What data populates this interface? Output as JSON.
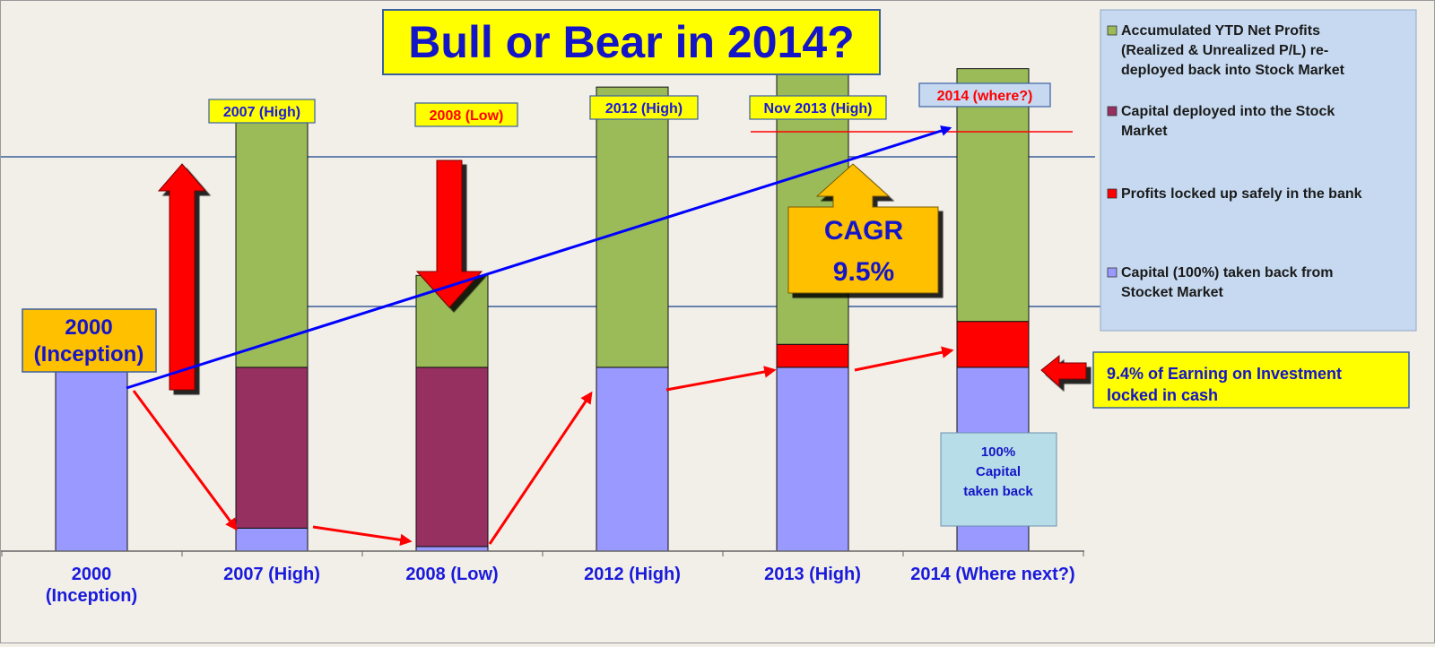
{
  "chart_data": {
    "type": "bar",
    "stacked": true,
    "title": "Bull or Bear in 2014?",
    "xlabel": "",
    "ylabel": "",
    "grid": false,
    "legend_position": "right",
    "categories": [
      "2000 (Inception)",
      "2007 (High)",
      "2008 (Low)",
      "2012 (High)",
      "2013 (High)",
      "2014 (Where next?)"
    ],
    "category_lines": [
      [
        "2000"
      ],
      [
        "(Inception)"
      ]
    ],
    "ylim": [
      0,
      110
    ],
    "series": [
      {
        "key": "capital_taken_back",
        "color": "#9999ff",
        "values": [
          40,
          5,
          1,
          40,
          40,
          40
        ]
      },
      {
        "key": "capital_deployed",
        "color": "#953060",
        "values": [
          0,
          35,
          39,
          0,
          0,
          0
        ]
      },
      {
        "key": "profits_locked",
        "color": "#ff0000",
        "values": [
          0,
          0,
          0,
          0,
          5,
          10
        ]
      },
      {
        "key": "accumulated_profits",
        "color": "#9bbb59",
        "values": [
          0,
          58,
          20,
          61,
          59,
          55
        ]
      }
    ],
    "legend": [
      {
        "series": "accumulated_profits",
        "lines": [
          "Accumulated YTD Net Profits",
          "(Realized & Unrealized P/L) re-",
          "deployed back into Stock Market"
        ]
      },
      {
        "series": "capital_deployed",
        "lines": [
          "Capital deployed into the Stock",
          "Market"
        ]
      },
      {
        "series": "profits_locked",
        "lines": [
          "Profits locked up safely in the bank"
        ]
      },
      {
        "series": "capital_taken_back",
        "lines": [
          "Capital (100%) taken back from",
          "Stocket Market"
        ]
      }
    ],
    "top_labels": [
      {
        "text": "2007 (High)",
        "color": "#1a1adc"
      },
      {
        "text": "2008 (Low)",
        "color": "#ff0000"
      },
      {
        "text": "2012 (High)",
        "color": "#1a1adc"
      },
      {
        "text": "Nov 2013 (High)",
        "color": "#1a1adc"
      },
      {
        "text": "2014 (where?)",
        "color": "#ff0000"
      }
    ],
    "annotations": {
      "inception_box": [
        "2000",
        "(Inception)"
      ],
      "cagr_box": [
        "CAGR",
        "9.5%"
      ],
      "earning_box": [
        "9.4% of Earning on Investment",
        "locked in cash"
      ],
      "capital_back_box": [
        "100%",
        "Capital",
        "taken back"
      ]
    }
  },
  "colors": {
    "background": "#f2efe9",
    "title_fill": "#ffff00",
    "title_text": "#1515c8",
    "legend_fill": "#c6d9f0",
    "category_text": "#1a1adc",
    "arrow_red": "#ff0000",
    "trend_blue": "#0000ff",
    "cagr_fill": "#ffc000",
    "info_fill": "#b7dde8"
  }
}
